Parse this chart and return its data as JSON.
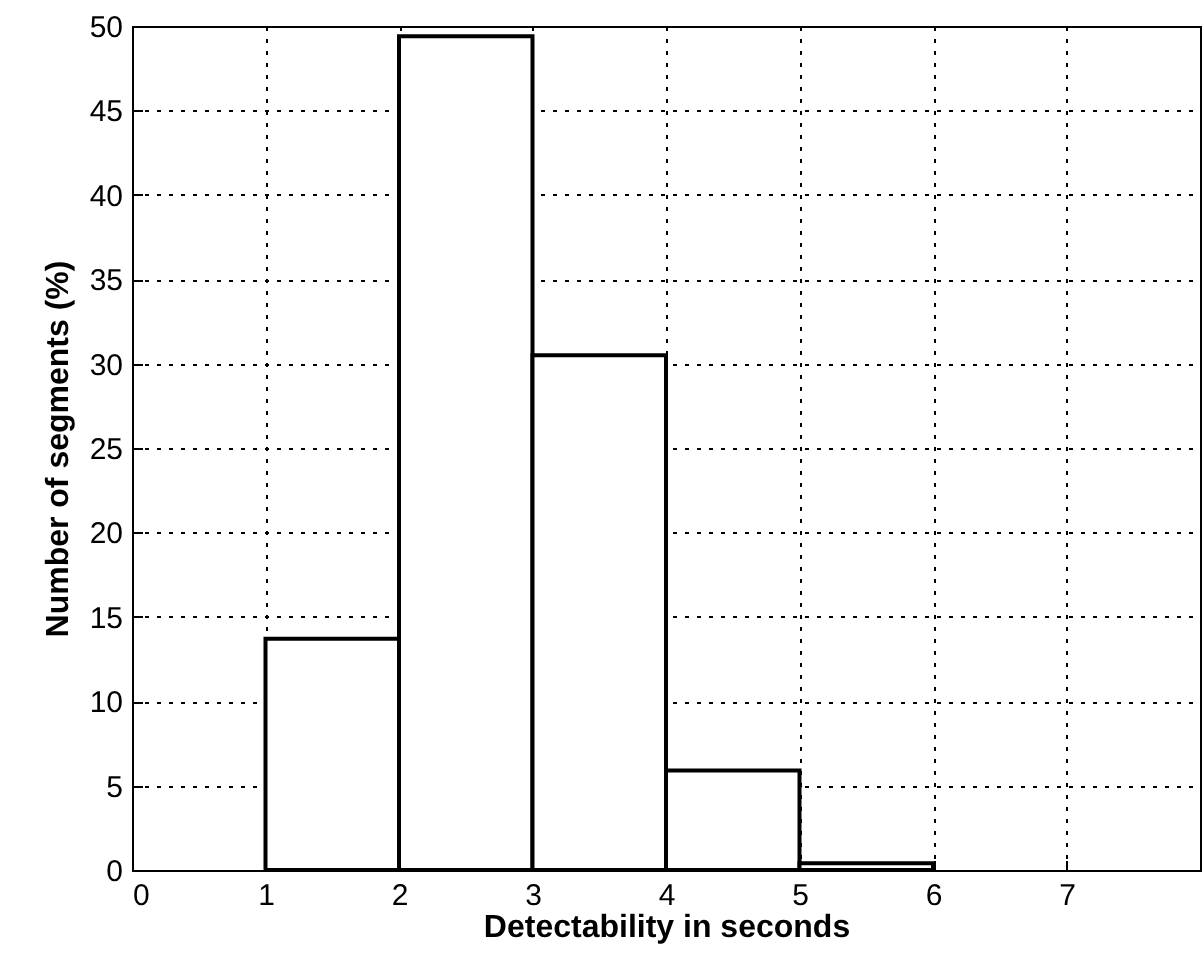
{
  "chart_data": {
    "type": "histogram",
    "xlabel": "Detectability in seconds",
    "ylabel": "Number of segments (%)",
    "bins": [
      1,
      2,
      3,
      4,
      5,
      6
    ],
    "values": [
      13.7,
      49.4,
      30.5,
      5.9,
      0.4
    ],
    "color": "#ffffff",
    "xlim": [
      0,
      8
    ],
    "xticks": [
      0,
      1,
      2,
      3,
      4,
      5,
      6,
      7
    ],
    "ylim": [
      0,
      50
    ],
    "yticks": [
      0,
      5,
      10,
      15,
      20,
      25,
      30,
      35,
      40,
      45,
      50
    ],
    "grid": true
  }
}
